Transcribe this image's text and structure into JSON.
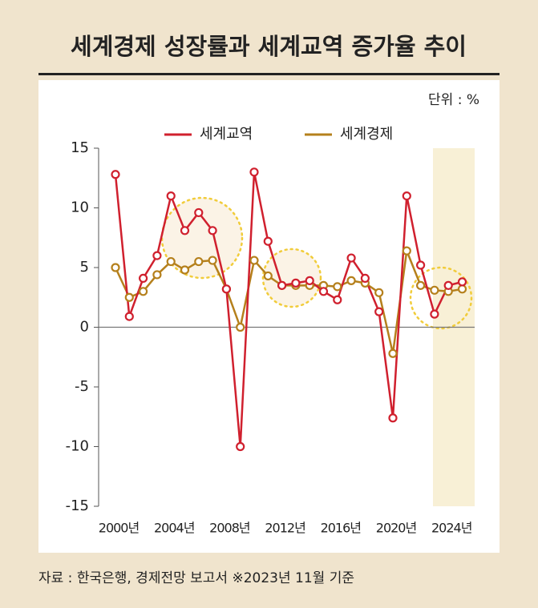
{
  "chart_data": {
    "type": "line",
    "title": "세계경제 성장률과 세계교역 증가율 추이",
    "unit_label": "단위 : %",
    "source": "자료 : 한국은행, 경제전망 보고서  ※2023년 11월 기준",
    "categories": [
      "2000년",
      null,
      null,
      null,
      "2004년",
      null,
      null,
      null,
      "2008년",
      null,
      null,
      null,
      "2012년",
      null,
      null,
      null,
      "2016년",
      null,
      null,
      null,
      "2020년",
      null,
      null,
      null,
      "2024년",
      null
    ],
    "series": [
      {
        "name": "세계교역",
        "color": "#d0202e",
        "values": [
          12.8,
          0.9,
          4.1,
          6.0,
          11.0,
          8.1,
          9.6,
          8.1,
          3.2,
          -10.0,
          13.0,
          7.2,
          3.5,
          3.7,
          3.9,
          3.0,
          2.3,
          5.8,
          4.1,
          1.3,
          -7.6,
          11.0,
          5.2,
          1.1,
          3.5,
          3.8
        ]
      },
      {
        "name": "세계경제",
        "color": "#b5801c",
        "values": [
          5.0,
          2.5,
          3.0,
          4.4,
          5.5,
          4.8,
          5.5,
          5.6,
          3.2,
          0.0,
          5.6,
          4.3,
          3.5,
          3.5,
          3.5,
          3.5,
          3.4,
          3.9,
          3.7,
          2.9,
          -2.2,
          6.4,
          3.5,
          3.1,
          3.0,
          3.2
        ]
      }
    ],
    "ylim": [
      -15,
      15
    ],
    "yticks": [
      15,
      10,
      5,
      0,
      -5,
      -10,
      -15
    ],
    "legend": "top"
  }
}
